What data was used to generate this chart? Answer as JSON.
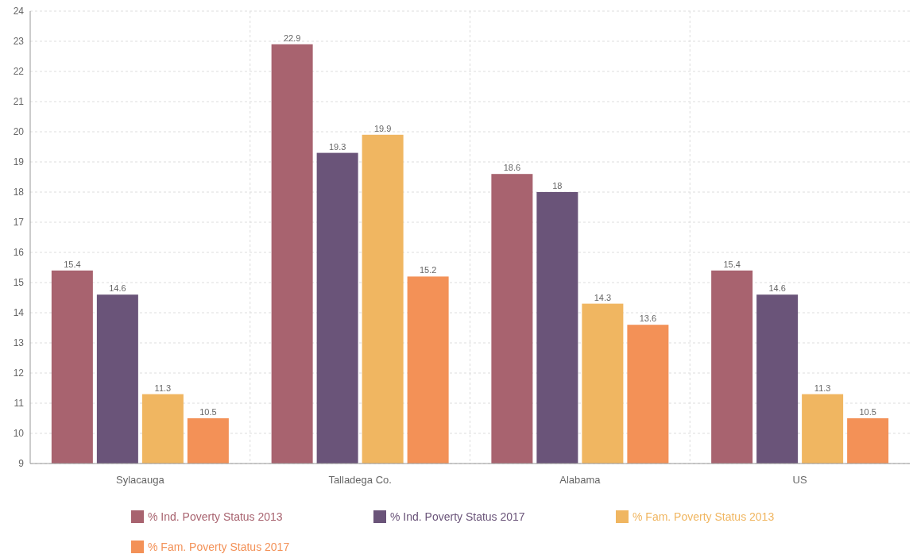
{
  "chart_data": {
    "type": "bar",
    "categories": [
      "Sylacauga",
      "Talladega Co.",
      "Alabama",
      "US"
    ],
    "series": [
      {
        "name": "% Ind. Poverty Status 2013",
        "color": "#a8636f",
        "values": [
          15.4,
          22.9,
          18.6,
          15.4
        ]
      },
      {
        "name": "% Ind. Poverty Status 2017",
        "color": "#6a5479",
        "values": [
          14.6,
          19.3,
          18,
          14.6
        ]
      },
      {
        "name": "% Fam. Poverty Status 2013",
        "color": "#f0b661",
        "values": [
          11.3,
          19.9,
          14.3,
          11.3
        ]
      },
      {
        "name": "% Fam. Poverty Status 2017",
        "color": "#f39157",
        "values": [
          10.5,
          15.2,
          13.6,
          10.5
        ]
      }
    ],
    "ylim": [
      9,
      24
    ],
    "yticks": [
      9,
      10,
      11,
      12,
      13,
      14,
      15,
      16,
      17,
      18,
      19,
      20,
      21,
      22,
      23,
      24
    ],
    "grid": true,
    "data_labels": true,
    "legend": "bottom"
  }
}
